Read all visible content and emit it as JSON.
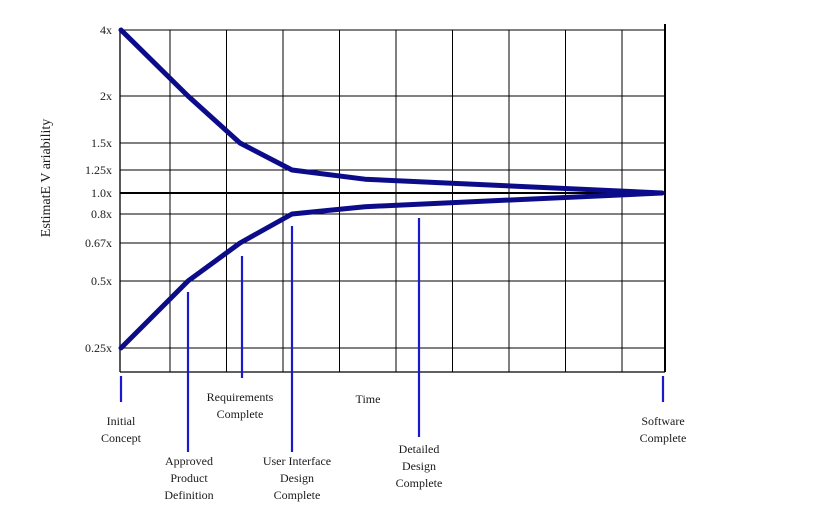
{
  "chart_data": {
    "type": "line",
    "ylabel": "EstimatE V ariability",
    "xlabel": "Time",
    "y_ticks": [
      "4x",
      "2x",
      "1.5x",
      "1.25x",
      "1.0x",
      "0.8x",
      "0.67x",
      "0.5x",
      "0.25x"
    ],
    "grid": true,
    "colors": {
      "series": "#0c0c8a",
      "grid": "#000000",
      "marker": "#1a1acc"
    },
    "series": [
      {
        "x": [
          0,
          1,
          2,
          3,
          4,
          6.5
        ],
        "values": [
          4,
          2,
          1.5,
          1.25,
          1.15,
          1.0
        ]
      },
      {
        "x": [
          0,
          1,
          2,
          3,
          4,
          6.5
        ],
        "values": [
          0.25,
          0.5,
          0.67,
          0.8,
          0.87,
          1.0
        ]
      }
    ],
    "milestones": [
      {
        "label": [
          "Initial",
          "Concept"
        ],
        "x": 0
      },
      {
        "label": [
          "Approved",
          "Product",
          "Definition"
        ],
        "x": 1
      },
      {
        "label": [
          "Requirements",
          "Complete"
        ],
        "x": 2
      },
      {
        "label": [
          "User Interface",
          "Design",
          "Complete"
        ],
        "x": 3
      },
      {
        "label": [
          "Detailed",
          "Design",
          "Complete"
        ],
        "x": 4
      },
      {
        "label": [
          "Software",
          "Complete"
        ],
        "x": 6.5
      }
    ]
  }
}
